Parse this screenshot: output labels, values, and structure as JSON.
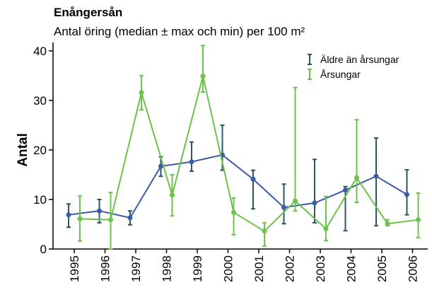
{
  "chart_data": {
    "type": "line",
    "title": "Enångersån",
    "subtitle": "Antal öring (median ± max och min) per 100 m²",
    "y_label": "Antal",
    "categories": [
      "1995",
      "1996",
      "1997",
      "1998",
      "1999",
      "2000",
      "2001",
      "2002",
      "2003",
      "2004",
      "2005",
      "2006"
    ],
    "series": [
      {
        "name": "Äldre än årsungar",
        "color": "#3b5ba5",
        "error_color": "#2c5566",
        "values": [
          6.9,
          7.7,
          6.3,
          16.7,
          17.6,
          19,
          14.1,
          8.4,
          9.3,
          11.9,
          14.7,
          11
        ],
        "max": [
          9.1,
          10,
          7.7,
          18.6,
          21.6,
          25,
          15.9,
          13.1,
          18.1,
          12.6,
          22.4,
          16
        ],
        "min": [
          4.4,
          5.3,
          4.9,
          14.7,
          15.7,
          15.9,
          8.1,
          5.1,
          5.3,
          3.7,
          4.7,
          6.9
        ]
      },
      {
        "name": "Årsungar",
        "color": "#6cc24a",
        "error_color": "#6cc24a",
        "values": [
          6.1,
          5.9,
          31.6,
          10.9,
          34.9,
          7.4,
          3.6,
          9.7,
          4.1,
          14.4,
          5.1,
          5.9
        ],
        "max": [
          10.7,
          11.4,
          35,
          15,
          41.1,
          10.3,
          5.3,
          32.6,
          10.6,
          26.1,
          5.9,
          11.3
        ],
        "min": [
          1.6,
          0,
          28.1,
          6.7,
          31.7,
          2.9,
          0.6,
          7.7,
          1.7,
          9.4,
          4.7,
          2.3
        ]
      }
    ],
    "ylim": [
      0,
      41.7
    ],
    "yticks": [
      0,
      10,
      20,
      30,
      40
    ],
    "legend": "top-right"
  }
}
